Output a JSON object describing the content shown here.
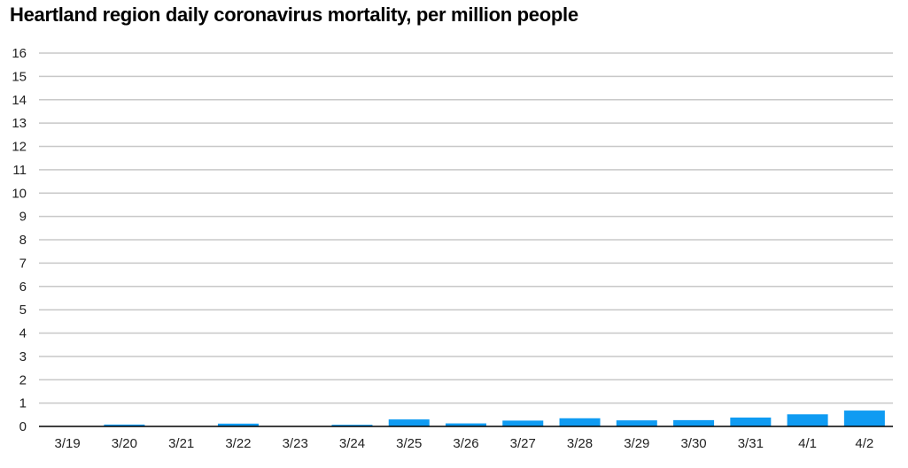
{
  "chart_data": {
    "type": "bar",
    "title": "Heartland region daily coronavirus mortality, per million people",
    "xlabel": "",
    "ylabel": "",
    "categories": [
      "3/19",
      "3/20",
      "3/21",
      "3/22",
      "3/23",
      "3/24",
      "3/25",
      "3/26",
      "3/27",
      "3/28",
      "3/29",
      "3/30",
      "3/31",
      "4/1",
      "4/2"
    ],
    "values": [
      0,
      0.08,
      0,
      0.12,
      0,
      0.07,
      0.3,
      0.13,
      0.25,
      0.35,
      0.26,
      0.27,
      0.38,
      0.52,
      0.68
    ],
    "ylim": [
      0,
      16
    ],
    "yticks": [
      0,
      1,
      2,
      3,
      4,
      5,
      6,
      7,
      8,
      9,
      10,
      11,
      12,
      13,
      14,
      15,
      16
    ],
    "grid": true,
    "legend": "none",
    "colors": {
      "bar": "#0f9bf2",
      "grid": "#c8c8c8",
      "axis": "#000000"
    }
  }
}
